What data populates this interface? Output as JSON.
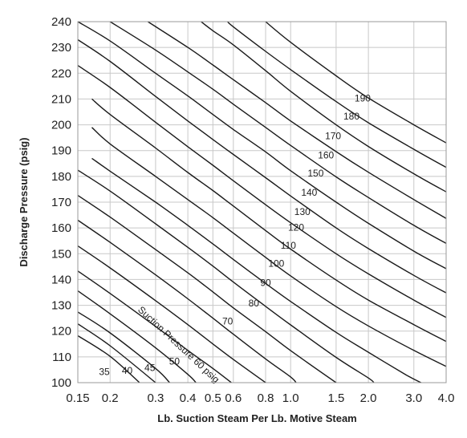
{
  "chart_data": {
    "type": "line",
    "xlabel": "Lb. Suction Steam Per Lb. Motive Steam",
    "ylabel": "Discharge Pressure (psig)",
    "x_scale": "log",
    "xlim": [
      0.15,
      4.0
    ],
    "ylim": [
      100,
      240
    ],
    "x_ticks": [
      0.15,
      0.2,
      0.3,
      0.4,
      0.5,
      0.6,
      0.8,
      1.0,
      1.5,
      2.0,
      3.0,
      4.0
    ],
    "x_tick_labels": [
      "0.15",
      "0.2",
      "0.3",
      "0.4",
      "0.5",
      "0.6",
      "0.8",
      "1.0",
      "1.5",
      "2.0",
      "3.0",
      "4.0"
    ],
    "y_ticks": [
      100,
      110,
      120,
      130,
      140,
      150,
      160,
      170,
      180,
      190,
      200,
      210,
      220,
      230,
      240
    ],
    "grid": true,
    "series": [
      {
        "name": "35",
        "points": [
          [
            0.15,
            118.2
          ],
          [
            0.2,
            110.2
          ],
          [
            0.26,
            100
          ]
        ]
      },
      {
        "name": "40",
        "points": [
          [
            0.15,
            122.8
          ],
          [
            0.2,
            114.3
          ],
          [
            0.3,
            100
          ]
        ]
      },
      {
        "name": "45",
        "points": [
          [
            0.15,
            127.4
          ],
          [
            0.2,
            119.3
          ],
          [
            0.3,
            105.5
          ],
          [
            0.34,
            100
          ]
        ]
      },
      {
        "name": "50",
        "points": [
          [
            0.15,
            135.6
          ],
          [
            0.2,
            126.7
          ],
          [
            0.3,
            113.5
          ],
          [
            0.4,
            103.2
          ],
          [
            0.43,
            100
          ]
        ]
      },
      {
        "name": "Suction Pressure 60 psig",
        "points": [
          [
            0.15,
            143.3
          ],
          [
            0.2,
            134.6
          ],
          [
            0.3,
            121.8
          ],
          [
            0.4,
            112.5
          ],
          [
            0.5,
            105.5
          ],
          [
            0.59,
            100
          ]
        ]
      },
      {
        "name": "70",
        "points": [
          [
            0.15,
            153.0
          ],
          [
            0.2,
            144.5
          ],
          [
            0.3,
            131.8
          ],
          [
            0.4,
            122.5
          ],
          [
            0.5,
            115.0
          ],
          [
            0.6,
            109.0
          ],
          [
            0.8,
            100
          ]
        ]
      },
      {
        "name": "80",
        "points": [
          [
            0.15,
            163.0
          ],
          [
            0.2,
            154.4
          ],
          [
            0.3,
            141.8
          ],
          [
            0.4,
            132.5
          ],
          [
            0.5,
            125.0
          ],
          [
            0.6,
            118.8
          ],
          [
            0.8,
            109.2
          ],
          [
            1.0,
            102.2
          ],
          [
            1.05,
            100
          ]
        ]
      },
      {
        "name": "90",
        "points": [
          [
            0.15,
            172.6
          ],
          [
            0.2,
            164.2
          ],
          [
            0.3,
            151.6
          ],
          [
            0.4,
            142.6
          ],
          [
            0.5,
            135.2
          ],
          [
            0.6,
            129.0
          ],
          [
            0.8,
            119.8
          ],
          [
            1.0,
            112.4
          ],
          [
            1.5,
            100
          ]
        ]
      },
      {
        "name": "100",
        "points": [
          [
            0.15,
            182.4
          ],
          [
            0.2,
            174.3
          ],
          [
            0.3,
            161.6
          ],
          [
            0.4,
            152.5
          ],
          [
            0.5,
            145.2
          ],
          [
            0.6,
            139.0
          ],
          [
            0.8,
            129.6
          ],
          [
            1.0,
            122.4
          ],
          [
            1.5,
            109.8
          ],
          [
            2.0,
            101.8
          ],
          [
            2.1,
            100
          ]
        ]
      },
      {
        "name": "110",
        "points": [
          [
            0.17,
            187.0
          ],
          [
            0.2,
            182.0
          ],
          [
            0.3,
            170.0
          ],
          [
            0.4,
            161.0
          ],
          [
            0.5,
            153.8
          ],
          [
            0.6,
            147.8
          ],
          [
            0.8,
            138.5
          ],
          [
            1.0,
            131.5
          ],
          [
            1.5,
            119.5
          ],
          [
            2.0,
            111.8
          ],
          [
            2.8,
            103.0
          ],
          [
            3.2,
            100
          ]
        ]
      },
      {
        "name": "120",
        "points": [
          [
            0.17,
            199.0
          ],
          [
            0.2,
            192.6
          ],
          [
            0.3,
            180.0
          ],
          [
            0.4,
            171.0
          ],
          [
            0.5,
            164.0
          ],
          [
            0.6,
            158.0
          ],
          [
            0.8,
            148.6
          ],
          [
            1.0,
            141.4
          ],
          [
            1.5,
            129.5
          ],
          [
            2.0,
            122.0
          ],
          [
            3.0,
            112.5
          ],
          [
            4.0,
            106.3
          ]
        ]
      },
      {
        "name": "130",
        "points": [
          [
            0.17,
            210.0
          ],
          [
            0.2,
            204.0
          ],
          [
            0.3,
            191.0
          ],
          [
            0.4,
            181.5
          ],
          [
            0.5,
            174.5
          ],
          [
            0.6,
            168.5
          ],
          [
            0.8,
            159.0
          ],
          [
            1.0,
            151.8
          ],
          [
            1.5,
            139.8
          ],
          [
            2.0,
            132.0
          ],
          [
            3.0,
            122.5
          ],
          [
            4.0,
            116.0
          ]
        ]
      },
      {
        "name": "140",
        "points": [
          [
            0.15,
            223.0
          ],
          [
            0.2,
            214.5
          ],
          [
            0.3,
            201.0
          ],
          [
            0.4,
            191.5
          ],
          [
            0.5,
            184.3
          ],
          [
            0.6,
            178.3
          ],
          [
            0.8,
            169.0
          ],
          [
            1.0,
            162.0
          ],
          [
            1.5,
            150.0
          ],
          [
            2.0,
            142.2
          ],
          [
            3.0,
            132.0
          ],
          [
            4.0,
            125.3
          ]
        ]
      },
      {
        "name": "150",
        "points": [
          [
            0.15,
            233.0
          ],
          [
            0.2,
            224.6
          ],
          [
            0.3,
            211.0
          ],
          [
            0.4,
            201.5
          ],
          [
            0.5,
            194.3
          ],
          [
            0.6,
            188.5
          ],
          [
            0.8,
            179.5
          ],
          [
            1.0,
            172.4
          ],
          [
            1.5,
            160.0
          ],
          [
            2.0,
            152.0
          ],
          [
            3.0,
            141.6
          ],
          [
            4.0,
            134.8
          ]
        ]
      },
      {
        "name": "160",
        "points": [
          [
            0.15,
            240.0
          ],
          [
            0.2,
            232.5
          ],
          [
            0.3,
            220.0
          ],
          [
            0.4,
            211.2
          ],
          [
            0.5,
            204.0
          ],
          [
            0.6,
            198.2
          ],
          [
            0.8,
            189.5
          ],
          [
            1.0,
            182.2
          ],
          [
            1.5,
            170.0
          ],
          [
            2.0,
            161.8
          ],
          [
            3.0,
            151.0
          ],
          [
            4.0,
            144.2
          ]
        ]
      },
      {
        "name": "170",
        "points": [
          [
            0.2,
            240.0
          ],
          [
            0.3,
            229.0
          ],
          [
            0.4,
            220.5
          ],
          [
            0.5,
            213.8
          ],
          [
            0.6,
            208.0
          ],
          [
            0.8,
            199.0
          ],
          [
            1.0,
            192.0
          ],
          [
            1.5,
            179.8
          ],
          [
            2.0,
            171.8
          ],
          [
            3.0,
            161.0
          ],
          [
            4.0,
            154.0
          ]
        ]
      },
      {
        "name": "180",
        "points": [
          [
            0.28,
            240.0
          ],
          [
            0.4,
            230.0
          ],
          [
            0.5,
            223.2
          ],
          [
            0.6,
            217.5
          ],
          [
            0.8,
            208.6
          ],
          [
            1.0,
            201.5
          ],
          [
            1.5,
            189.6
          ],
          [
            2.0,
            181.6
          ],
          [
            3.0,
            171.0
          ],
          [
            4.0,
            163.7
          ]
        ]
      },
      {
        "name": "190",
        "points": [
          [
            0.45,
            240.0
          ],
          [
            0.5,
            236.5
          ],
          [
            0.6,
            231.0
          ],
          [
            0.8,
            221.0
          ],
          [
            1.0,
            213.0
          ],
          [
            1.5,
            200.0
          ],
          [
            2.0,
            191.6
          ],
          [
            3.0,
            181.0
          ],
          [
            4.0,
            174.0
          ]
        ]
      },
      {
        "name": "",
        "points": [
          [
            0.57,
            240.0
          ],
          [
            0.6,
            238.0
          ],
          [
            0.8,
            228.5
          ],
          [
            1.0,
            221.4
          ],
          [
            1.5,
            209.0
          ],
          [
            2.0,
            200.8
          ],
          [
            3.0,
            190.5
          ],
          [
            4.0,
            183.5
          ]
        ]
      },
      {
        "name": "",
        "points": [
          [
            0.8,
            240.0
          ],
          [
            1.0,
            232.0
          ],
          [
            1.5,
            219.0
          ],
          [
            2.0,
            210.4
          ],
          [
            3.0,
            200.0
          ],
          [
            4.0,
            193.0
          ]
        ]
      }
    ],
    "curve_labels": [
      {
        "text": "35",
        "x": 0.19,
        "y": 103.0,
        "angle": 0
      },
      {
        "text": "40",
        "x": 0.233,
        "y": 103.5,
        "angle": 0
      },
      {
        "text": "45",
        "x": 0.285,
        "y": 104.5,
        "angle": 0
      },
      {
        "text": "50",
        "x": 0.355,
        "y": 107.0,
        "angle": 0
      },
      {
        "text": "Suction Pressure 60 psig",
        "x": 0.255,
        "y": 128.0,
        "angle": 43
      },
      {
        "text": "70",
        "x": 0.57,
        "y": 122.5,
        "angle": 0
      },
      {
        "text": "80",
        "x": 0.72,
        "y": 129.5,
        "angle": 0
      },
      {
        "text": "90",
        "x": 0.8,
        "y": 137.5,
        "angle": 0
      },
      {
        "text": "100",
        "x": 0.88,
        "y": 145.0,
        "angle": 0
      },
      {
        "text": "110",
        "x": 0.98,
        "y": 152.0,
        "angle": 0
      },
      {
        "text": "120",
        "x": 1.05,
        "y": 159.0,
        "angle": 0
      },
      {
        "text": "130",
        "x": 1.11,
        "y": 165.0,
        "angle": 0
      },
      {
        "text": "140",
        "x": 1.18,
        "y": 172.5,
        "angle": 0
      },
      {
        "text": "150",
        "x": 1.25,
        "y": 180.0,
        "angle": 0
      },
      {
        "text": "160",
        "x": 1.37,
        "y": 187.0,
        "angle": 0
      },
      {
        "text": "170",
        "x": 1.46,
        "y": 194.5,
        "angle": 0
      },
      {
        "text": "180",
        "x": 1.72,
        "y": 202.0,
        "angle": 0
      },
      {
        "text": "190",
        "x": 1.9,
        "y": 209.0,
        "angle": 0
      }
    ]
  }
}
